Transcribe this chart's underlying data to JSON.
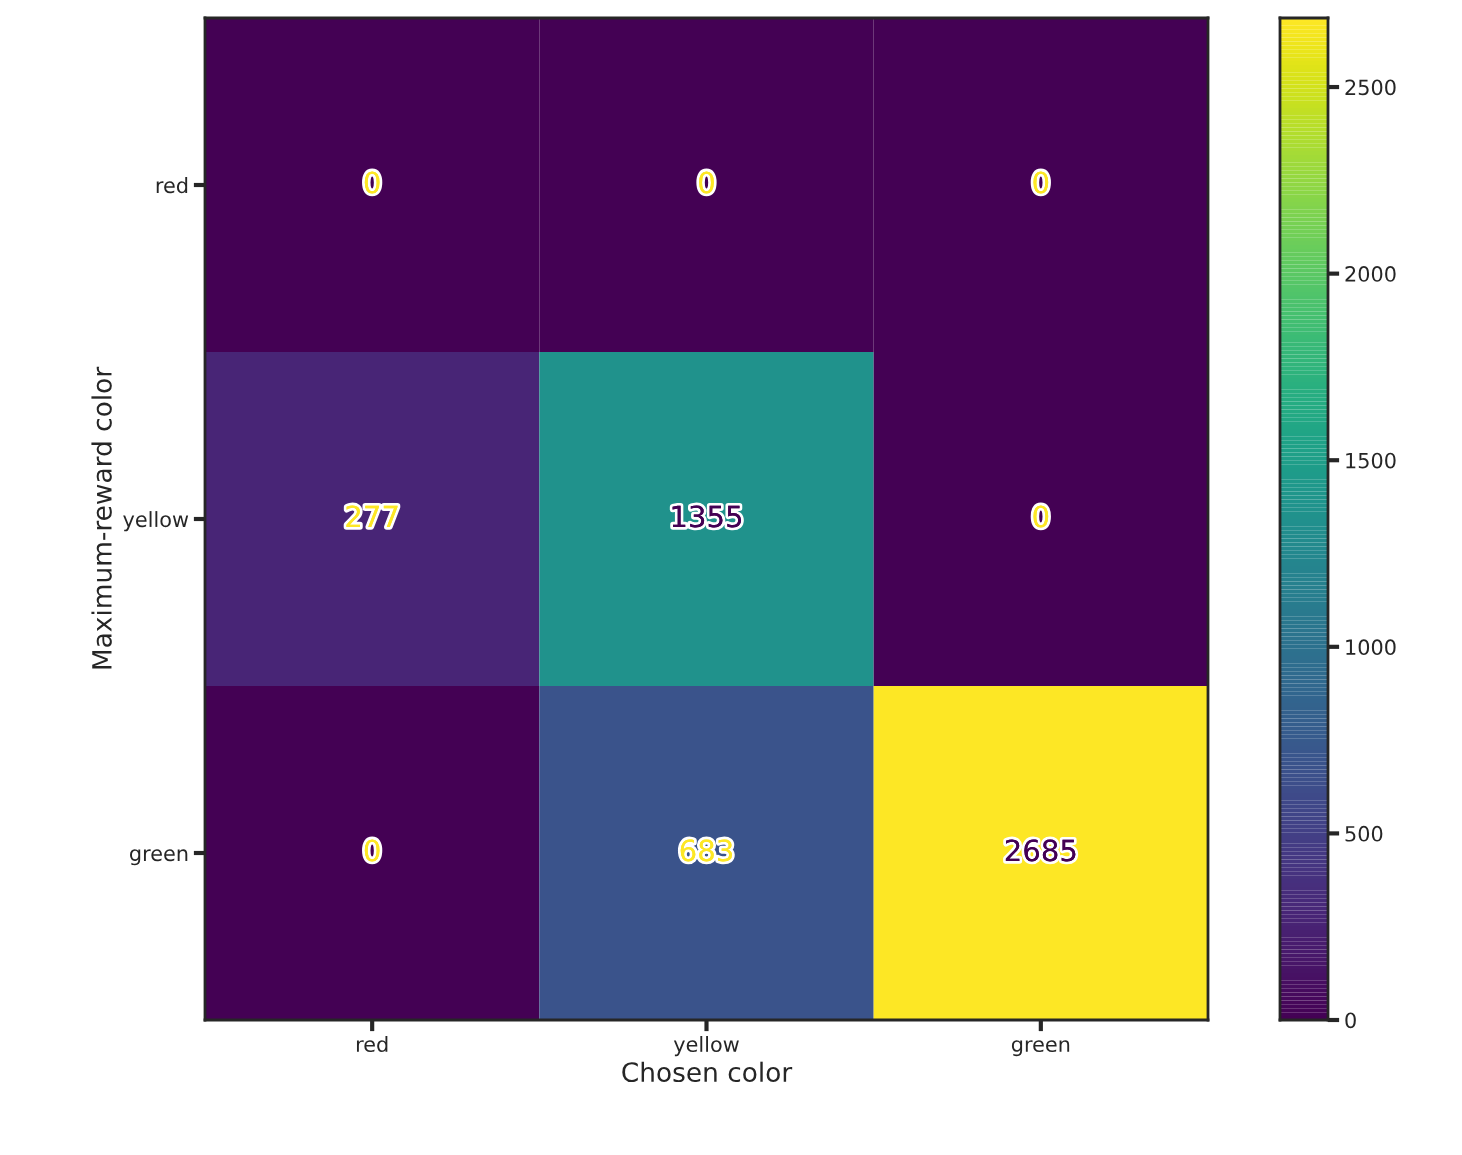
{
  "chart_data": {
    "type": "heatmap",
    "xlabel": "Chosen color",
    "ylabel": "Maximum-reward color",
    "categories": [
      "red",
      "yellow",
      "green"
    ],
    "y_categories": [
      "red",
      "yellow",
      "green"
    ],
    "cells": [
      [
        0,
        0,
        0
      ],
      [
        277,
        1355,
        0
      ],
      [
        0,
        683,
        2685
      ]
    ],
    "clim": [
      0,
      2685
    ],
    "cticks": [
      0,
      500,
      1000,
      1500,
      2000,
      2500
    ],
    "data_labels": true
  }
}
